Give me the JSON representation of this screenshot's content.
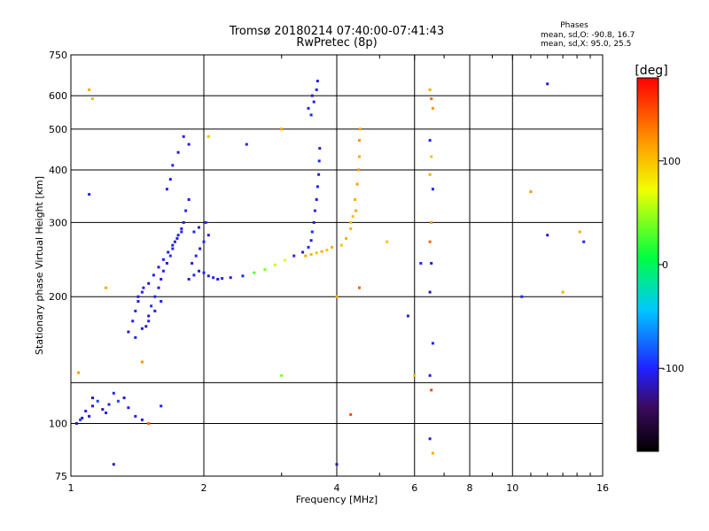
{
  "header": {
    "title_line1": "Tromsø 20180214 07:40:00-07:41:43",
    "title_line2": "RwPretec (8p)",
    "phases_title": "Phases",
    "phases_line1": "mean, sd,O: -90.8, 16.7",
    "phases_line2": "mean, sd,X:  95.0, 25.5"
  },
  "colorbar": {
    "unit_label": "[deg]",
    "ticks": [
      {
        "value": 100,
        "label": "100"
      },
      {
        "value": 0,
        "label": "0"
      },
      {
        "value": -100,
        "label": "-100"
      }
    ]
  },
  "colors": {
    "o_mode": "#1f3cf0",
    "x_mode_low": "#ffd200",
    "x_mode_high": "#ff8a00"
  },
  "chart_data": {
    "type": "scatter",
    "xlabel": "Frequency [MHz]",
    "ylabel": "Stationary phase Virtual Height [km]",
    "xscale": "log",
    "yscale": "log",
    "xlim": [
      1,
      16
    ],
    "ylim": [
      75,
      750
    ],
    "grid": true,
    "x_ticks": [
      {
        "value": 1,
        "label": "1"
      },
      {
        "value": 2,
        "label": "2"
      },
      {
        "value": 4,
        "label": "4"
      },
      {
        "value": 6,
        "label": "6"
      },
      {
        "value": 8,
        "label": "8"
      },
      {
        "value": 10,
        "label": "10"
      },
      {
        "value": 16,
        "label": "16"
      }
    ],
    "x_minor_ticks": [
      3,
      5,
      7,
      9,
      11,
      12,
      13,
      14,
      15
    ],
    "y_ticks": [
      {
        "value": 75,
        "label": "75"
      },
      {
        "value": 100,
        "label": "100"
      },
      {
        "value": 200,
        "label": "200"
      },
      {
        "value": 300,
        "label": "300"
      },
      {
        "value": 400,
        "label": "400"
      },
      {
        "value": 500,
        "label": "500"
      },
      {
        "value": 600,
        "label": "600"
      },
      {
        "value": 750,
        "label": "750"
      }
    ],
    "y_grid_extra": [
      125
    ],
    "colorbar_range": [
      -180,
      180
    ],
    "points": [
      [
        1.03,
        100,
        -120
      ],
      [
        1.06,
        103,
        -115
      ],
      [
        1.08,
        107,
        -100
      ],
      [
        1.12,
        110,
        -110
      ],
      [
        1.15,
        113,
        -90
      ],
      [
        1.18,
        108,
        -120
      ],
      [
        1.22,
        111,
        -110
      ],
      [
        1.25,
        118,
        -100
      ],
      [
        1.28,
        113,
        -90
      ],
      [
        1.32,
        115,
        -120
      ],
      [
        1.35,
        109,
        -110
      ],
      [
        1.4,
        104,
        -100
      ],
      [
        1.45,
        102,
        -110
      ],
      [
        1.12,
        115,
        -120
      ],
      [
        1.2,
        106,
        -100
      ],
      [
        1.1,
        104,
        -110
      ],
      [
        1.05,
        102,
        -90
      ],
      [
        1.35,
        165,
        -110
      ],
      [
        1.38,
        175,
        -105
      ],
      [
        1.4,
        185,
        -100
      ],
      [
        1.42,
        195,
        -110
      ],
      [
        1.45,
        205,
        -100
      ],
      [
        1.48,
        170,
        -120
      ],
      [
        1.5,
        180,
        -110
      ],
      [
        1.52,
        190,
        -95
      ],
      [
        1.55,
        200,
        -100
      ],
      [
        1.58,
        210,
        -110
      ],
      [
        1.6,
        220,
        -105
      ],
      [
        1.62,
        230,
        -100
      ],
      [
        1.65,
        240,
        -110
      ],
      [
        1.68,
        250,
        -95
      ],
      [
        1.7,
        260,
        -100
      ],
      [
        1.72,
        270,
        -110
      ],
      [
        1.75,
        280,
        -105
      ],
      [
        1.78,
        290,
        -100
      ],
      [
        1.8,
        300,
        -110
      ],
      [
        1.82,
        320,
        -100
      ],
      [
        1.85,
        340,
        -110
      ],
      [
        1.65,
        360,
        -100
      ],
      [
        1.68,
        380,
        -110
      ],
      [
        1.7,
        410,
        -100
      ],
      [
        1.75,
        440,
        -110
      ],
      [
        1.8,
        480,
        -100
      ],
      [
        1.85,
        460,
        -110
      ],
      [
        1.4,
        160,
        -100
      ],
      [
        1.45,
        168,
        -110
      ],
      [
        1.5,
        175,
        -100
      ],
      [
        1.55,
        185,
        -110
      ],
      [
        1.6,
        195,
        -100
      ],
      [
        1.42,
        200,
        -110
      ],
      [
        1.46,
        210,
        -100
      ],
      [
        1.5,
        215,
        -110
      ],
      [
        1.54,
        225,
        -100
      ],
      [
        1.58,
        235,
        -110
      ],
      [
        1.62,
        245,
        -100
      ],
      [
        1.66,
        255,
        -110
      ],
      [
        1.7,
        265,
        -100
      ],
      [
        1.74,
        275,
        -110
      ],
      [
        1.78,
        285,
        -100
      ],
      [
        1.85,
        220,
        -110
      ],
      [
        1.9,
        225,
        -100
      ],
      [
        1.95,
        230,
        -110
      ],
      [
        2.0,
        228,
        -100
      ],
      [
        2.05,
        224,
        -110
      ],
      [
        2.1,
        222,
        -100
      ],
      [
        2.15,
        220,
        -110
      ],
      [
        2.2,
        221,
        -100
      ],
      [
        1.88,
        240,
        -110
      ],
      [
        1.92,
        250,
        -100
      ],
      [
        1.96,
        260,
        -110
      ],
      [
        2.0,
        270,
        -100
      ],
      [
        2.05,
        280,
        -110
      ],
      [
        1.9,
        285,
        -100
      ],
      [
        1.95,
        292,
        -110
      ],
      [
        2.02,
        300,
        -100
      ],
      [
        2.3,
        222,
        -110
      ],
      [
        2.45,
        224,
        -100
      ],
      [
        2.6,
        228,
        30
      ],
      [
        2.75,
        232,
        40
      ],
      [
        2.9,
        238,
        60
      ],
      [
        3.05,
        244,
        70
      ],
      [
        3.2,
        250,
        -100
      ],
      [
        3.35,
        255,
        -110
      ],
      [
        3.45,
        262,
        -100
      ],
      [
        3.5,
        272,
        -110
      ],
      [
        3.52,
        285,
        -100
      ],
      [
        3.55,
        300,
        -110
      ],
      [
        3.57,
        320,
        -100
      ],
      [
        3.6,
        340,
        -110
      ],
      [
        3.62,
        365,
        -100
      ],
      [
        3.64,
        390,
        -110
      ],
      [
        3.65,
        420,
        -100
      ],
      [
        3.66,
        450,
        -110
      ],
      [
        3.5,
        540,
        -100
      ],
      [
        3.55,
        580,
        -110
      ],
      [
        3.6,
        620,
        -100
      ],
      [
        3.62,
        650,
        -110
      ],
      [
        3.45,
        560,
        -100
      ],
      [
        3.52,
        600,
        -110
      ],
      [
        3.4,
        250,
        110
      ],
      [
        3.5,
        252,
        105
      ],
      [
        3.6,
        254,
        100
      ],
      [
        3.7,
        256,
        110
      ],
      [
        3.8,
        258,
        100
      ],
      [
        3.9,
        262,
        110
      ],
      [
        4.1,
        265,
        100
      ],
      [
        4.2,
        275,
        110
      ],
      [
        4.3,
        290,
        105
      ],
      [
        4.35,
        310,
        100
      ],
      [
        4.4,
        340,
        110
      ],
      [
        4.45,
        370,
        115
      ],
      [
        4.48,
        400,
        120
      ],
      [
        4.5,
        430,
        110
      ],
      [
        4.5,
        470,
        120
      ],
      [
        4.52,
        500,
        115
      ],
      [
        4.42,
        320,
        110
      ],
      [
        4.3,
        300,
        100
      ],
      [
        6.5,
        620,
        110
      ],
      [
        6.55,
        590,
        140
      ],
      [
        6.6,
        560,
        120
      ],
      [
        6.5,
        470,
        -100
      ],
      [
        6.55,
        430,
        100
      ],
      [
        6.5,
        390,
        110
      ],
      [
        6.6,
        360,
        -100
      ],
      [
        6.55,
        300,
        115
      ],
      [
        6.5,
        270,
        140
      ],
      [
        6.55,
        240,
        -110
      ],
      [
        6.5,
        205,
        -120
      ],
      [
        6.6,
        155,
        -100
      ],
      [
        6.5,
        130,
        -110
      ],
      [
        6.55,
        120,
        150
      ],
      [
        6.5,
        92,
        -110
      ],
      [
        6.6,
        85,
        110
      ],
      [
        1.1,
        620,
        110
      ],
      [
        1.12,
        590,
        105
      ],
      [
        1.1,
        350,
        -100
      ],
      [
        1.2,
        210,
        110
      ],
      [
        2.05,
        480,
        100
      ],
      [
        2.5,
        460,
        -100
      ],
      [
        3.0,
        500,
        115
      ],
      [
        4.0,
        200,
        110
      ],
      [
        4.5,
        210,
        140
      ],
      [
        5.2,
        270,
        100
      ],
      [
        5.8,
        180,
        -110
      ],
      [
        6.0,
        130,
        100
      ],
      [
        6.2,
        240,
        -100
      ],
      [
        4.3,
        105,
        150
      ],
      [
        4.0,
        80,
        -120
      ],
      [
        12.0,
        640,
        -110
      ],
      [
        12.0,
        280,
        -110
      ],
      [
        11.0,
        355,
        120
      ],
      [
        13.0,
        205,
        110
      ],
      [
        14.5,
        270,
        -100
      ],
      [
        14.2,
        285,
        110
      ],
      [
        10.5,
        200,
        -100
      ],
      [
        1.5,
        100,
        140
      ],
      [
        1.6,
        110,
        -100
      ],
      [
        1.45,
        140,
        120
      ],
      [
        1.25,
        80,
        -110
      ],
      [
        1.04,
        132,
        115
      ],
      [
        3.0,
        130,
        40
      ]
    ]
  }
}
